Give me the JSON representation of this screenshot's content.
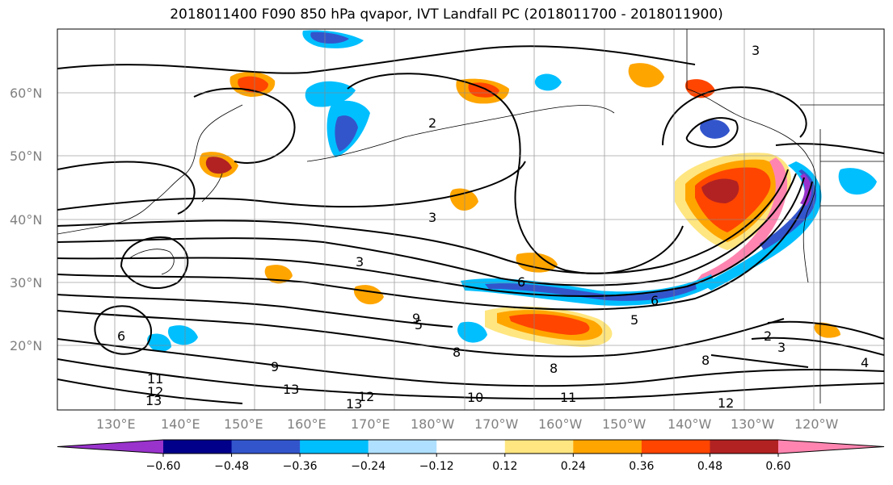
{
  "title": "2018011400 F090 850 hPa qvapor, IVT Landfall PC (2018011700 - 2018011900)",
  "lat_labels": [
    "60°N",
    "50°N",
    "40°N",
    "30°N",
    "20°N"
  ],
  "lon_labels": [
    "130°E",
    "140°E",
    "150°E",
    "160°E",
    "170°E",
    "180°W",
    "170°W",
    "160°W",
    "150°W",
    "140°W",
    "130°W",
    "120°W"
  ],
  "contour_labels": [
    "2",
    "3",
    "3",
    "3",
    "6",
    "9",
    "5",
    "6",
    "8",
    "8",
    "8",
    "2",
    "3",
    "4",
    "11",
    "12",
    "13",
    "13",
    "13",
    "12",
    "10",
    "11",
    "9",
    "12",
    "5",
    "6"
  ],
  "colorbar": {
    "colors": [
      "#9933cc",
      "#00008b",
      "#3355cc",
      "#00bfff",
      "#b0e0ff",
      "#ffffff",
      "#ffe680",
      "#ffa500",
      "#ff4500",
      "#b22222",
      "#ff85b0"
    ],
    "ticks": [
      "−0.60",
      "−0.48",
      "−0.36",
      "−0.24",
      "−0.12",
      "0.12",
      "0.24",
      "0.36",
      "0.48",
      "0.60"
    ]
  }
}
